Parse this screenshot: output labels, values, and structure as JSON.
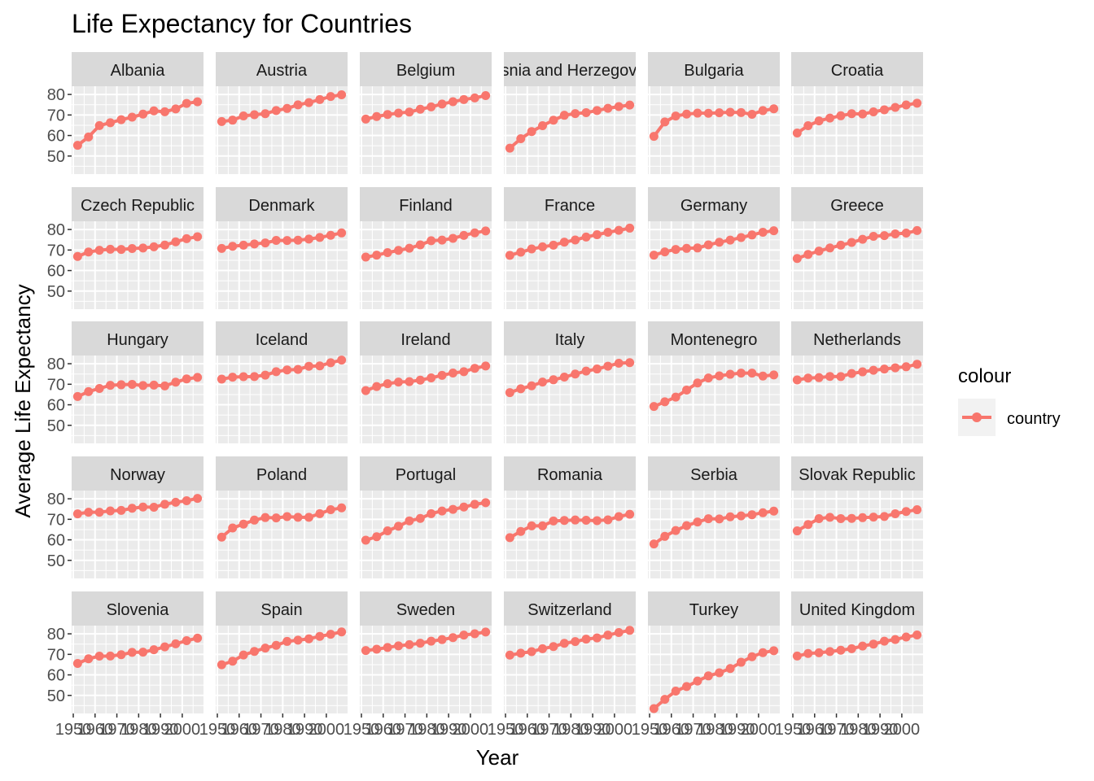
{
  "chart_data": {
    "type": "line",
    "title": "Life Expectancy for Countries",
    "xlabel": "Year",
    "ylabel": "Average Life Expectancy",
    "x": [
      1952,
      1957,
      1962,
      1967,
      1972,
      1977,
      1982,
      1987,
      1992,
      1997,
      2002,
      2007
    ],
    "xticks": [
      1950,
      1960,
      1970,
      1980,
      1990,
      2000
    ],
    "xtick_labels": [
      "1950",
      "1960",
      "1970",
      "1980",
      "1990",
      "2000"
    ],
    "xlim": [
      1949.25,
      2009.75
    ],
    "yticks": [
      50,
      60,
      70,
      80
    ],
    "ytick_labels": [
      "50",
      "60",
      "70",
      "80"
    ],
    "ylim": [
      41.2,
      84.0
    ],
    "facet_grid": "5 rows x 6 columns",
    "legend": {
      "title": "colour",
      "entries": [
        {
          "label": "country",
          "color": "#F8766D"
        }
      ],
      "position": "right"
    },
    "line_color": "#F8766D",
    "panel_background": "#EBEBEB",
    "strip_background": "#D9D9D9",
    "grid": true,
    "series": [
      {
        "name": "Albania",
        "values": [
          55.23,
          59.28,
          64.82,
          66.22,
          67.69,
          68.93,
          70.42,
          72.0,
          71.58,
          72.95,
          75.65,
          76.42
        ]
      },
      {
        "name": "Austria",
        "values": [
          66.8,
          67.48,
          69.54,
          70.14,
          70.63,
          72.17,
          73.18,
          74.94,
          76.04,
          77.51,
          78.98,
          79.83
        ]
      },
      {
        "name": "Belgium",
        "values": [
          68.0,
          69.24,
          70.25,
          70.94,
          71.44,
          72.8,
          73.93,
          75.35,
          76.46,
          77.53,
          78.32,
          79.44
        ]
      },
      {
        "name": "Bosnia and Herzegovina",
        "values": [
          53.82,
          58.45,
          61.93,
          64.79,
          67.45,
          69.86,
          70.69,
          71.14,
          72.18,
          73.24,
          74.09,
          74.85
        ]
      },
      {
        "name": "Bulgaria",
        "values": [
          59.6,
          66.61,
          69.51,
          70.42,
          70.9,
          70.81,
          71.08,
          71.34,
          71.19,
          70.32,
          72.14,
          73.0
        ]
      },
      {
        "name": "Croatia",
        "values": [
          61.21,
          64.77,
          67.13,
          68.5,
          69.61,
          70.64,
          70.46,
          71.52,
          72.53,
          73.68,
          74.88,
          75.75
        ]
      },
      {
        "name": "Czech Republic",
        "values": [
          66.87,
          69.03,
          69.9,
          70.38,
          70.29,
          70.71,
          70.96,
          71.58,
          72.4,
          74.01,
          75.51,
          76.49
        ]
      },
      {
        "name": "Denmark",
        "values": [
          70.78,
          71.81,
          72.35,
          72.96,
          73.47,
          74.69,
          74.63,
          74.8,
          75.33,
          76.11,
          77.18,
          78.33
        ]
      },
      {
        "name": "Finland",
        "values": [
          66.55,
          67.49,
          68.75,
          69.83,
          70.87,
          72.52,
          74.55,
          74.83,
          75.7,
          77.13,
          78.37,
          79.31
        ]
      },
      {
        "name": "France",
        "values": [
          67.41,
          68.93,
          70.51,
          71.55,
          72.38,
          73.83,
          74.89,
          76.34,
          77.46,
          78.64,
          79.59,
          80.66
        ]
      },
      {
        "name": "Germany",
        "values": [
          67.5,
          69.1,
          70.3,
          70.8,
          71.0,
          72.5,
          73.8,
          74.847,
          76.07,
          77.34,
          78.67,
          79.406
        ]
      },
      {
        "name": "Greece",
        "values": [
          65.86,
          67.86,
          69.51,
          71.0,
          72.34,
          73.68,
          75.24,
          76.67,
          77.03,
          77.869,
          78.256,
          79.483
        ]
      },
      {
        "name": "Hungary",
        "values": [
          64.03,
          66.41,
          67.96,
          69.5,
          69.76,
          69.95,
          69.39,
          69.58,
          69.17,
          71.04,
          72.59,
          73.338
        ]
      },
      {
        "name": "Iceland",
        "values": [
          72.49,
          73.47,
          73.68,
          73.73,
          74.46,
          76.11,
          76.99,
          77.23,
          78.77,
          78.95,
          80.5,
          81.757
        ]
      },
      {
        "name": "Ireland",
        "values": [
          66.91,
          68.9,
          70.29,
          71.08,
          71.28,
          72.03,
          73.1,
          74.36,
          75.467,
          76.122,
          77.783,
          78.885
        ]
      },
      {
        "name": "Italy",
        "values": [
          65.94,
          67.81,
          69.24,
          71.06,
          72.19,
          73.48,
          74.98,
          76.42,
          77.44,
          78.82,
          80.24,
          80.546
        ]
      },
      {
        "name": "Montenegro",
        "values": [
          59.164,
          61.448,
          63.728,
          67.178,
          70.636,
          73.066,
          74.101,
          74.865,
          75.435,
          75.445,
          73.981,
          74.543
        ]
      },
      {
        "name": "Netherlands",
        "values": [
          72.13,
          72.99,
          73.23,
          73.82,
          73.75,
          75.24,
          76.05,
          76.83,
          77.42,
          78.03,
          78.53,
          79.762
        ]
      },
      {
        "name": "Norway",
        "values": [
          72.67,
          73.44,
          73.47,
          74.08,
          74.34,
          75.37,
          75.97,
          75.89,
          77.32,
          78.32,
          79.05,
          80.196
        ]
      },
      {
        "name": "Poland",
        "values": [
          61.31,
          65.77,
          67.64,
          69.61,
          70.85,
          70.67,
          71.32,
          70.98,
          70.99,
          72.75,
          74.67,
          75.563
        ]
      },
      {
        "name": "Portugal",
        "values": [
          59.82,
          61.51,
          64.39,
          66.6,
          69.26,
          70.41,
          72.77,
          74.06,
          74.86,
          75.97,
          77.29,
          78.098
        ]
      },
      {
        "name": "Romania",
        "values": [
          61.05,
          64.1,
          66.8,
          66.8,
          69.21,
          69.46,
          69.66,
          69.53,
          69.36,
          69.72,
          71.322,
          72.476
        ]
      },
      {
        "name": "Serbia",
        "values": [
          57.996,
          61.685,
          64.531,
          66.914,
          68.7,
          70.3,
          70.162,
          71.218,
          71.659,
          72.232,
          73.213,
          74.002
        ]
      },
      {
        "name": "Slovak Republic",
        "values": [
          64.36,
          67.45,
          70.33,
          70.98,
          70.35,
          70.45,
          70.8,
          71.08,
          71.38,
          72.71,
          73.8,
          74.663
        ]
      },
      {
        "name": "Slovenia",
        "values": [
          65.57,
          67.85,
          69.15,
          69.18,
          69.82,
          70.97,
          71.063,
          72.25,
          73.64,
          75.13,
          76.66,
          77.926
        ]
      },
      {
        "name": "Spain",
        "values": [
          64.94,
          66.66,
          69.69,
          71.44,
          73.06,
          74.39,
          76.3,
          76.9,
          77.57,
          78.77,
          79.78,
          80.941
        ]
      },
      {
        "name": "Sweden",
        "values": [
          71.86,
          72.49,
          73.37,
          74.16,
          74.72,
          75.44,
          76.42,
          77.19,
          78.16,
          79.39,
          80.04,
          80.884
        ]
      },
      {
        "name": "Switzerland",
        "values": [
          69.62,
          70.56,
          71.32,
          72.77,
          73.78,
          75.39,
          76.21,
          77.41,
          78.03,
          79.37,
          80.62,
          81.701
        ]
      },
      {
        "name": "Turkey",
        "values": [
          43.585,
          48.079,
          52.098,
          54.336,
          57.005,
          59.507,
          61.036,
          63.108,
          66.146,
          68.835,
          70.845,
          71.777
        ]
      },
      {
        "name": "United Kingdom",
        "values": [
          69.18,
          70.42,
          70.76,
          71.36,
          72.01,
          72.76,
          74.04,
          75.007,
          76.42,
          77.218,
          78.471,
          79.425
        ]
      }
    ]
  }
}
